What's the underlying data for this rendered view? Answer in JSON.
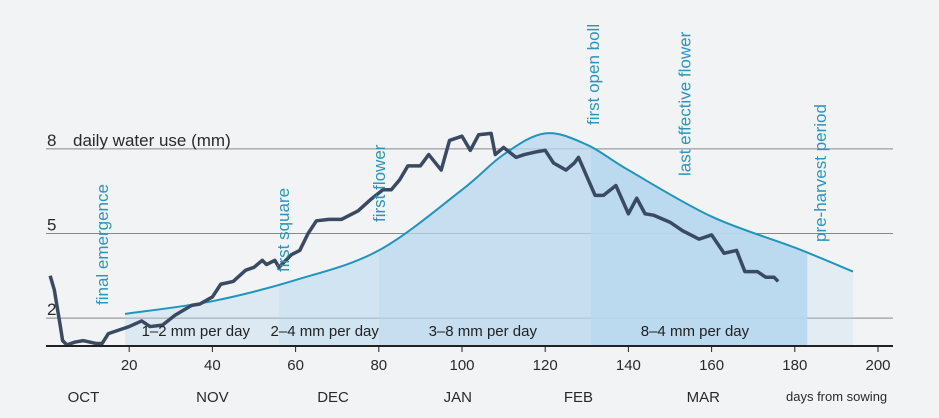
{
  "chart_data": {
    "type": "line",
    "ylabel": "daily water use (mm)",
    "xlabel": "days from sowing",
    "xlim": [
      0,
      200
    ],
    "ylim": [
      1,
      9.5
    ],
    "x_ticks": [
      20,
      40,
      60,
      80,
      100,
      120,
      140,
      160,
      180,
      200
    ],
    "y_ticks": [
      2,
      5,
      8
    ],
    "months": [
      {
        "label": "OCT",
        "day": 9
      },
      {
        "label": "NOV",
        "day": 40
      },
      {
        "label": "DEC",
        "day": 69
      },
      {
        "label": "JAN",
        "day": 99
      },
      {
        "label": "FEB",
        "day": 128
      },
      {
        "label": "MAR",
        "day": 158
      }
    ],
    "grid": true,
    "colors": {
      "actual": "#3a4a63",
      "curve": "#1f95bd",
      "fill": "#b7d7ee",
      "annotation": "#2a95c2"
    },
    "series": [
      {
        "x": [
          1,
          2,
          3.4,
          4,
          5,
          7,
          9,
          12,
          13.5,
          15,
          18,
          20,
          23,
          25,
          28,
          31,
          35,
          37,
          40,
          42,
          45,
          48,
          50,
          52,
          53,
          55,
          56,
          59,
          61,
          63,
          65,
          68,
          71,
          75,
          78,
          81,
          83,
          85,
          87,
          90,
          92,
          95,
          97,
          100,
          102,
          104,
          107,
          108,
          110,
          113,
          115,
          118,
          120,
          122,
          125,
          127,
          128,
          132,
          134,
          137,
          140,
          142,
          144,
          146,
          150,
          153,
          157,
          160,
          163,
          166,
          168,
          171,
          173,
          175,
          176
        ],
        "y": [
          3.5,
          3.0,
          1.75,
          1.2,
          1.05,
          1.15,
          1.2,
          1.1,
          1.1,
          1.45,
          1.6,
          1.7,
          1.9,
          1.7,
          1.75,
          2.1,
          2.45,
          2.5,
          2.75,
          3.2,
          3.3,
          3.7,
          3.8,
          4.05,
          3.9,
          4.05,
          3.8,
          4.25,
          4.4,
          5.0,
          5.45,
          5.5,
          5.5,
          5.8,
          6.2,
          6.55,
          6.55,
          6.9,
          7.4,
          7.4,
          7.8,
          7.25,
          8.3,
          8.45,
          7.95,
          8.5,
          8.55,
          7.8,
          8.05,
          7.7,
          7.8,
          7.9,
          7.95,
          7.5,
          7.25,
          7.5,
          7.7,
          6.35,
          6.35,
          6.7,
          5.7,
          6.25,
          5.7,
          5.65,
          5.4,
          5.1,
          4.8,
          4.95,
          4.3,
          4.4,
          3.65,
          3.65,
          3.45,
          3.45,
          3.3
        ]
      },
      {
        "x": [
          19,
          40,
          60,
          80,
          100,
          110,
          120,
          130,
          140,
          160,
          180,
          194
        ],
        "y": [
          2.15,
          2.6,
          3.35,
          4.4,
          6.55,
          7.8,
          8.55,
          8.15,
          7.25,
          5.6,
          4.5,
          3.65
        ]
      }
    ],
    "annotations": [
      {
        "text": "final emergence",
        "day": 13.5
      },
      {
        "text": "first square",
        "day": 57
      },
      {
        "text": "first flower",
        "day": 80
      },
      {
        "text": "first open boll",
        "day": 131.5
      },
      {
        "text": "last effective flower",
        "day": 153.5
      },
      {
        "text": "pre-harvest period",
        "day": 186
      }
    ],
    "periods": [
      {
        "text": "1–2 mm per day",
        "day": 36
      },
      {
        "text": "2–4 mm per day",
        "day": 67
      },
      {
        "text": "3–8 mm per day",
        "day": 105
      },
      {
        "text": "8–4 mm per day",
        "day": 156
      }
    ],
    "stage_bounds": [
      19,
      56,
      80,
      131,
      183
    ]
  }
}
